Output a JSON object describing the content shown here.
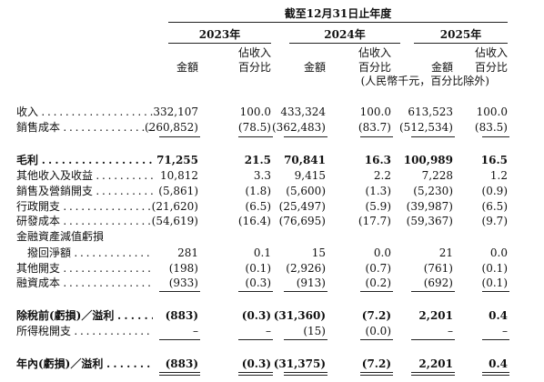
{
  "header": {
    "period": "截至12月31日止年度",
    "years": [
      "2023年",
      "2024年",
      "2025年"
    ],
    "amount_label": "金額",
    "percent_label": [
      "佔收入",
      "百分比"
    ],
    "note": "(人民幣千元，百分比除外)"
  },
  "rows": [
    {
      "label": "收入",
      "values": [
        "332,107",
        "100.0",
        "433,324",
        "100.0",
        "613,523",
        "100.0"
      ]
    },
    {
      "label": "銷售成本",
      "values": [
        "(260,852)",
        "(78.5)",
        "(362,483)",
        "(83.7)",
        "(512,534)",
        "(83.5)"
      ]
    },
    {
      "label": "毛利",
      "values": [
        "71,255",
        "21.5",
        "70,841",
        "16.3",
        "100,989",
        "16.5"
      ],
      "bold": true
    },
    {
      "label": "其他收入及收益",
      "values": [
        "10,812",
        "3.3",
        "9,415",
        "2.2",
        "7,228",
        "1.2"
      ]
    },
    {
      "label": "銷售及營銷開支",
      "values": [
        "(5,861)",
        "(1.8)",
        "(5,600)",
        "(1.3)",
        "(5,230)",
        "(0.9)"
      ]
    },
    {
      "label": "行政開支",
      "values": [
        "(21,620)",
        "(6.5)",
        "(25,497)",
        "(5.9)",
        "(39,987)",
        "(6.5)"
      ]
    },
    {
      "label": "研發成本",
      "values": [
        "(54,619)",
        "(16.4)",
        "(76,695)",
        "(17.7)",
        "(59,367)",
        "(9.7)"
      ]
    },
    {
      "label": "金融資產減值虧損"
    },
    {
      "label": "撥回淨額",
      "values": [
        "281",
        "0.1",
        "15",
        "0.0",
        "21",
        "0.0"
      ],
      "indent": true
    },
    {
      "label": "其他開支",
      "values": [
        "(198)",
        "(0.1)",
        "(2,926)",
        "(0.7)",
        "(761)",
        "(0.1)"
      ]
    },
    {
      "label": "融資成本",
      "values": [
        "(933)",
        "(0.3)",
        "(913)",
        "(0.2)",
        "(692)",
        "(0.1)"
      ]
    },
    {
      "label": "除稅前(虧損)／溢利",
      "values": [
        "(883)",
        "(0.3)",
        "(31,360)",
        "(7.2)",
        "2,201",
        "0.4"
      ],
      "bold": true
    },
    {
      "label": "所得稅開支",
      "values": [
        "–",
        "–",
        "(15)",
        "(0.0)",
        "–",
        "–"
      ]
    },
    {
      "label": "年內(虧損)／溢利",
      "values": [
        "(883)",
        "(0.3)",
        "(31,375)",
        "(7.2)",
        "2,201",
        "0.4"
      ],
      "bold": true
    }
  ]
}
